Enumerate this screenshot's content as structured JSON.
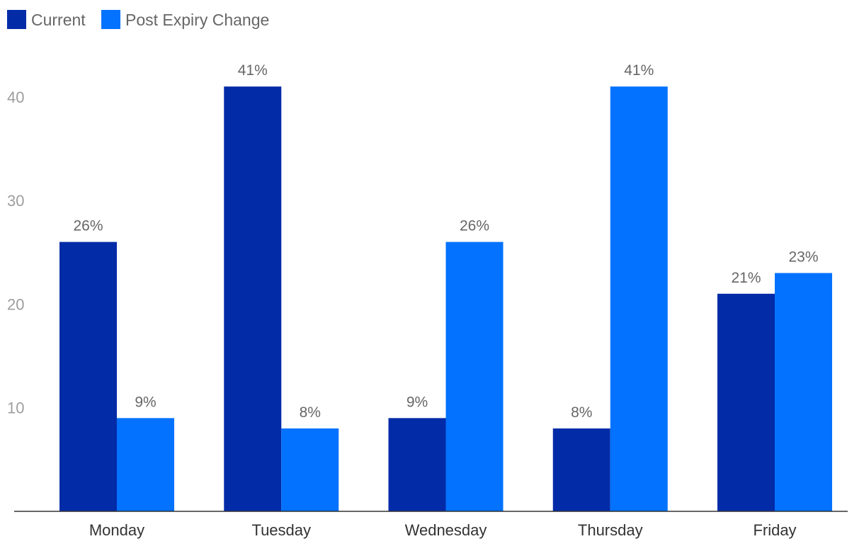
{
  "chart_data": {
    "type": "bar",
    "title": "",
    "xlabel": "",
    "ylabel": "",
    "categories": [
      "Monday",
      "Tuesday",
      "Wednesday",
      "Thursday",
      "Friday"
    ],
    "series": [
      {
        "name": "Current",
        "color": "#022ba8",
        "values": [
          26,
          41,
          9,
          8,
          21
        ],
        "labels": [
          "26%",
          "41%",
          "9%",
          "8%",
          "21%"
        ]
      },
      {
        "name": "Post Expiry Change",
        "color": "#0372ff",
        "values": [
          9,
          8,
          26,
          41,
          23
        ],
        "labels": [
          "9%",
          "8%",
          "26%",
          "41%",
          "23%"
        ]
      }
    ],
    "ylim": [
      0,
      50
    ],
    "yticks": [
      10,
      20,
      30,
      40
    ],
    "grid": false,
    "legend_position": "top-left"
  }
}
